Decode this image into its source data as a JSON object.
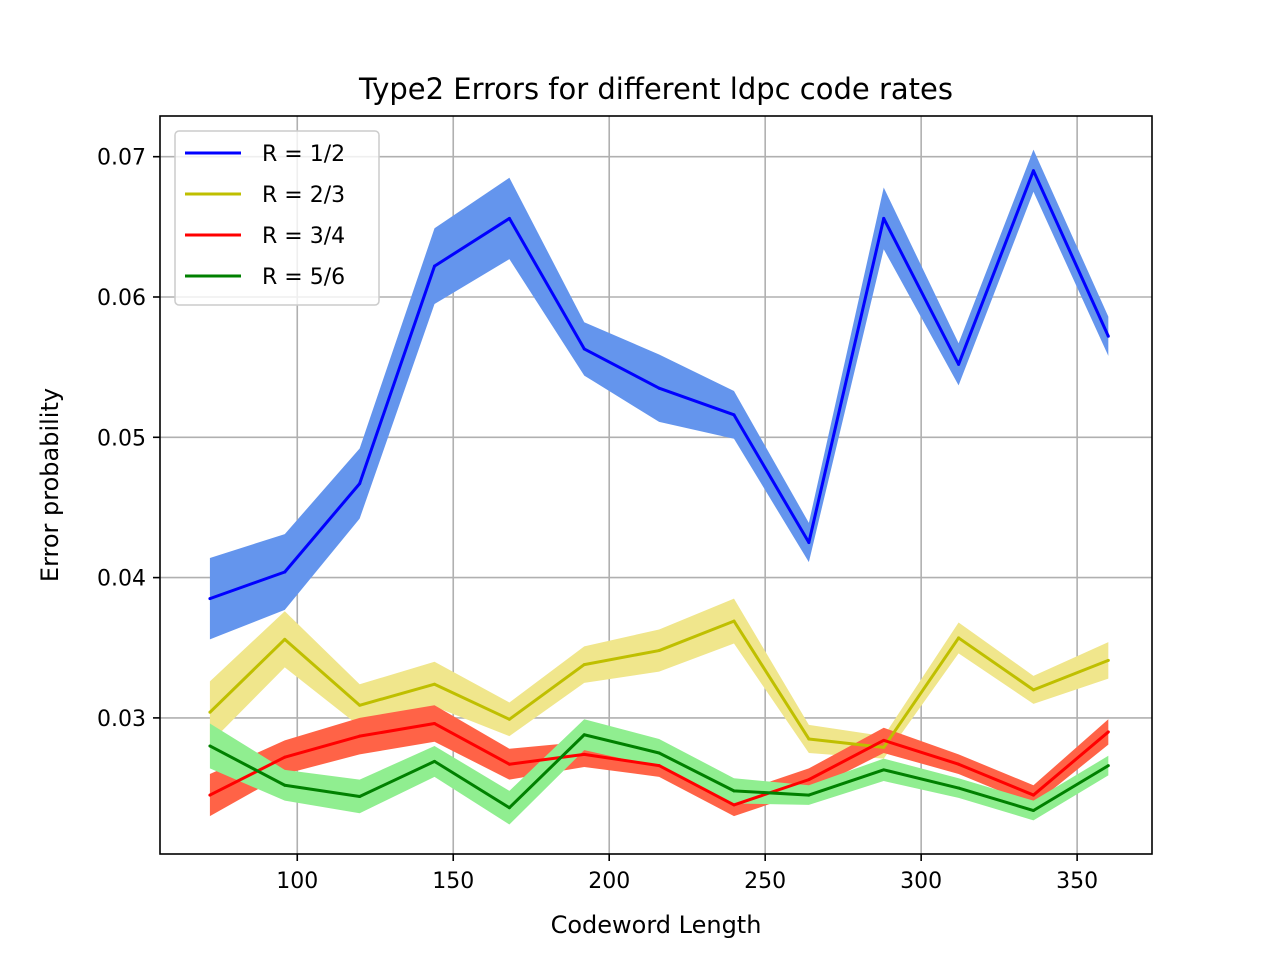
{
  "chart_data": {
    "type": "line",
    "title": "Type2 Errors for different ldpc code rates",
    "xlabel": "Codeword Length",
    "ylabel": "Error probability",
    "xlim": [
      56,
      374
    ],
    "ylim": [
      0.0203,
      0.0729
    ],
    "xticks": [
      100,
      150,
      200,
      250,
      300,
      350
    ],
    "xtick_labels": [
      "100",
      "150",
      "200",
      "250",
      "300",
      "350"
    ],
    "yticks": [
      0.03,
      0.04,
      0.05,
      0.06,
      0.07
    ],
    "ytick_labels": [
      "0.03",
      "0.04",
      "0.05",
      "0.06",
      "0.07"
    ],
    "grid": true,
    "legend_position": "upper-left",
    "x": [
      72,
      96,
      120,
      144,
      168,
      192,
      216,
      240,
      264,
      288,
      312,
      336,
      360
    ],
    "series": [
      {
        "name": "R = 1/2",
        "color": "#0000ff",
        "band_color": "#6495ed",
        "values": [
          0.0385,
          0.0404,
          0.0467,
          0.0622,
          0.0656,
          0.0563,
          0.0535,
          0.0516,
          0.0425,
          0.0656,
          0.0552,
          0.069,
          0.0572
        ],
        "band_halfwidth": [
          0.0029,
          0.0027,
          0.0025,
          0.0027,
          0.0029,
          0.0019,
          0.0024,
          0.0017,
          0.0014,
          0.0022,
          0.0015,
          0.0015,
          0.0014
        ]
      },
      {
        "name": "R = 2/3",
        "color": "#bfbf00",
        "band_color": "#f0e68c",
        "values": [
          0.0304,
          0.0356,
          0.0309,
          0.0324,
          0.0299,
          0.0338,
          0.0348,
          0.0369,
          0.0285,
          0.0279,
          0.0357,
          0.032,
          0.0341
        ],
        "band_halfwidth": [
          0.0022,
          0.002,
          0.0015,
          0.0016,
          0.0012,
          0.0013,
          0.0015,
          0.0016,
          0.001,
          0.0008,
          0.0011,
          0.001,
          0.0013
        ]
      },
      {
        "name": "R = 3/4",
        "color": "#ff0000",
        "band_color": "#ff6347",
        "values": [
          0.0245,
          0.0272,
          0.0287,
          0.0296,
          0.0267,
          0.0274,
          0.0266,
          0.0238,
          0.0256,
          0.0284,
          0.0267,
          0.0245,
          0.029
        ],
        "band_halfwidth": [
          0.0015,
          0.0012,
          0.0013,
          0.0013,
          0.0011,
          0.0009,
          0.0008,
          0.0008,
          0.0008,
          0.0009,
          0.0007,
          0.0007,
          0.0009
        ]
      },
      {
        "name": "R = 5/6",
        "color": "#008000",
        "band_color": "#90ee90",
        "values": [
          0.028,
          0.0252,
          0.0244,
          0.0269,
          0.0236,
          0.0288,
          0.0275,
          0.0248,
          0.0245,
          0.0263,
          0.025,
          0.0234,
          0.0266
        ],
        "band_halfwidth": [
          0.0016,
          0.0011,
          0.0012,
          0.0011,
          0.0012,
          0.0011,
          0.001,
          0.0009,
          0.0007,
          0.0008,
          0.0007,
          0.0007,
          0.0007
        ]
      }
    ]
  }
}
